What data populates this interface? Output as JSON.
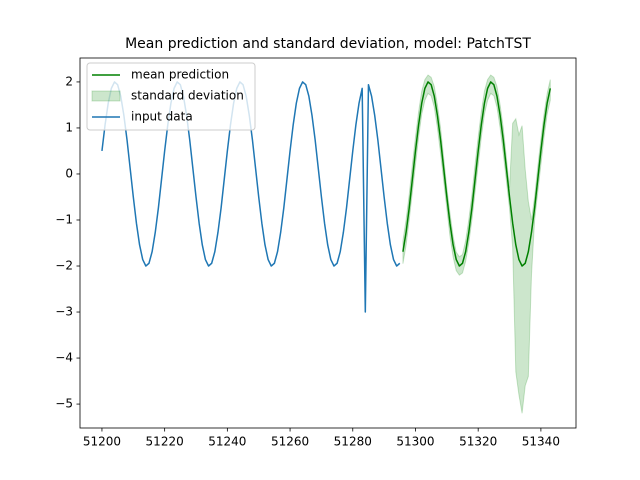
{
  "chart_data": {
    "type": "line",
    "title": "Mean prediction and standard deviation, model: PatchTST",
    "xlim": [
      51193,
      51351.2
    ],
    "ylim": [
      -5.52,
      2.52
    ],
    "xticks": [
      51200,
      51220,
      51240,
      51260,
      51280,
      51300,
      51320,
      51340
    ],
    "yticks": [
      {
        "value": -5,
        "label": "−5"
      },
      {
        "value": -4,
        "label": "−4"
      },
      {
        "value": -3,
        "label": "−3"
      },
      {
        "value": -2,
        "label": "−2"
      },
      {
        "value": -1,
        "label": "−1"
      },
      0,
      1,
      2
    ],
    "legend": "upper left",
    "series": [
      {
        "name": "mean prediction",
        "color": "#008000",
        "x": [
          51296,
          51297,
          51298,
          51299,
          51300,
          51301,
          51302,
          51303,
          51304,
          51305,
          51306,
          51307,
          51308,
          51309,
          51310,
          51311,
          51312,
          51313,
          51314,
          51315,
          51316,
          51317,
          51318,
          51319,
          51320,
          51321,
          51322,
          51323,
          51324,
          51325,
          51326,
          51327,
          51328,
          51329,
          51330,
          51331,
          51332,
          51333,
          51334,
          51335,
          51336,
          51337,
          51338,
          51339,
          51340,
          51341,
          51342,
          51343
        ],
        "values": [
          -1.69,
          -1.27,
          -0.74,
          -0.12,
          0.5,
          1.07,
          1.54,
          1.86,
          2.0,
          1.94,
          1.69,
          1.27,
          0.74,
          0.12,
          -0.5,
          -1.07,
          -1.54,
          -1.86,
          -2.0,
          -1.94,
          -1.69,
          -1.27,
          -0.74,
          -0.12,
          0.5,
          1.07,
          1.54,
          1.86,
          2.0,
          1.94,
          1.69,
          1.27,
          0.74,
          0.12,
          -0.5,
          -1.07,
          -1.54,
          -1.86,
          -2.0,
          -1.94,
          -1.69,
          -1.27,
          -0.74,
          -0.12,
          0.5,
          1.07,
          1.54,
          1.86
        ]
      },
      {
        "name": "standard deviation",
        "color": "#008000",
        "x": [
          51296,
          51297,
          51298,
          51299,
          51300,
          51301,
          51302,
          51303,
          51304,
          51305,
          51306,
          51307,
          51308,
          51309,
          51310,
          51311,
          51312,
          51313,
          51314,
          51315,
          51316,
          51317,
          51318,
          51319,
          51320,
          51321,
          51322,
          51323,
          51324,
          51325,
          51326,
          51327,
          51328,
          51329,
          51330,
          51331,
          51332,
          51333,
          51334,
          51335,
          51336,
          51337,
          51338,
          51339,
          51340,
          51341,
          51342,
          51343
        ],
        "upper": [
          -1.45,
          -1.0,
          -0.45,
          0.2,
          0.8,
          1.35,
          1.8,
          2.05,
          2.15,
          2.1,
          1.9,
          1.5,
          1.0,
          0.35,
          -0.3,
          -0.85,
          -1.35,
          -1.7,
          -1.8,
          -1.75,
          -1.45,
          -1.0,
          -0.45,
          0.2,
          0.8,
          1.35,
          1.8,
          2.05,
          2.15,
          2.1,
          1.9,
          1.5,
          1.0,
          0.35,
          -0.3,
          1.1,
          1.2,
          0.85,
          1.05,
          0.1,
          -0.6,
          -1.0,
          -0.5,
          0.15,
          0.75,
          1.3,
          1.75,
          2.05
        ],
        "lower": [
          -1.95,
          -1.55,
          -1.0,
          -0.4,
          0.2,
          0.8,
          1.3,
          1.6,
          1.75,
          1.7,
          1.45,
          1.0,
          0.45,
          -0.15,
          -0.75,
          -1.35,
          -1.8,
          -2.1,
          -2.2,
          -2.15,
          -1.9,
          -1.5,
          -1.0,
          -0.4,
          0.2,
          0.8,
          1.3,
          1.6,
          1.75,
          1.7,
          1.45,
          1.0,
          0.45,
          -0.15,
          -0.75,
          -1.6,
          -4.3,
          -4.8,
          -5.2,
          -4.6,
          -4.4,
          -2.2,
          -1.0,
          -0.4,
          0.2,
          0.8,
          1.3,
          1.6
        ]
      },
      {
        "name": "input data",
        "color": "#1f77b4",
        "x": [
          51200,
          51201,
          51202,
          51203,
          51204,
          51205,
          51206,
          51207,
          51208,
          51209,
          51210,
          51211,
          51212,
          51213,
          51214,
          51215,
          51216,
          51217,
          51218,
          51219,
          51220,
          51221,
          51222,
          51223,
          51224,
          51225,
          51226,
          51227,
          51228,
          51229,
          51230,
          51231,
          51232,
          51233,
          51234,
          51235,
          51236,
          51237,
          51238,
          51239,
          51240,
          51241,
          51242,
          51243,
          51244,
          51245,
          51246,
          51247,
          51248,
          51249,
          51250,
          51251,
          51252,
          51253,
          51254,
          51255,
          51256,
          51257,
          51258,
          51259,
          51260,
          51261,
          51262,
          51263,
          51264,
          51265,
          51266,
          51267,
          51268,
          51269,
          51270,
          51271,
          51272,
          51273,
          51274,
          51275,
          51276,
          51277,
          51278,
          51279,
          51280,
          51281,
          51282,
          51283,
          51284,
          51285,
          51286,
          51287,
          51288,
          51289,
          51290,
          51291,
          51292,
          51293,
          51294,
          51295
        ],
        "values": [
          0.5,
          1.07,
          1.54,
          1.86,
          2.0,
          1.94,
          1.69,
          1.27,
          0.74,
          0.12,
          -0.5,
          -1.07,
          -1.54,
          -1.86,
          -2.0,
          -1.94,
          -1.69,
          -1.27,
          -0.74,
          -0.12,
          0.5,
          1.07,
          1.54,
          1.86,
          2.0,
          1.94,
          1.69,
          1.27,
          0.74,
          0.12,
          -0.5,
          -1.07,
          -1.54,
          -1.86,
          -2.0,
          -1.94,
          -1.69,
          -1.27,
          -0.74,
          -0.12,
          0.5,
          1.07,
          1.54,
          1.86,
          2.0,
          1.94,
          1.69,
          1.27,
          0.74,
          0.12,
          -0.5,
          -1.07,
          -1.54,
          -1.86,
          -2.0,
          -1.94,
          -1.69,
          -1.27,
          -0.74,
          -0.12,
          0.5,
          1.07,
          1.54,
          1.86,
          2.0,
          1.94,
          1.69,
          1.27,
          0.74,
          0.12,
          -0.5,
          -1.07,
          -1.54,
          -1.86,
          -2.0,
          -1.94,
          -1.69,
          -1.27,
          -0.74,
          -0.12,
          0.5,
          1.07,
          1.54,
          1.86,
          -3,
          1.94,
          1.69,
          1.27,
          0.74,
          0.12,
          -0.5,
          -1.07,
          -1.54,
          -1.86,
          -2.0,
          -1.94
        ]
      }
    ]
  }
}
